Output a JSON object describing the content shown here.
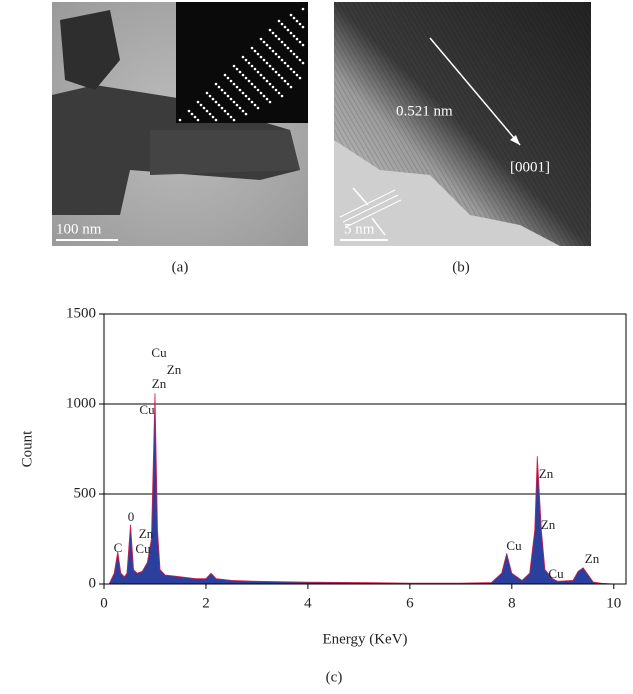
{
  "panels": {
    "a": {
      "label": "(a)",
      "scale_bar": "100 nm"
    },
    "b": {
      "label": "(b)",
      "scale_bar": "5 nm",
      "spacing": "0.521 nm",
      "direction": "[0001]"
    }
  },
  "chart_data": {
    "type": "area",
    "caption": "(c)",
    "xlabel": "Energy (KeV)",
    "ylabel": "Count",
    "color": "#2b3f9f",
    "edge_color": "#d0204a",
    "x": [
      0.1,
      0.2,
      0.27,
      0.33,
      0.4,
      0.45,
      0.52,
      0.58,
      0.65,
      0.75,
      0.85,
      0.93,
      1.0,
      1.05,
      1.1,
      1.2,
      1.5,
      1.8,
      2.0,
      2.1,
      2.2,
      2.5,
      3,
      4,
      5,
      6,
      7,
      7.6,
      7.8,
      7.9,
      8.0,
      8.2,
      8.35,
      8.45,
      8.5,
      8.58,
      8.65,
      8.8,
      8.9,
      9.2,
      9.3,
      9.4,
      9.5,
      9.6,
      9.8,
      10
    ],
    "values": [
      0,
      60,
      180,
      60,
      40,
      60,
      330,
      80,
      60,
      70,
      120,
      250,
      1060,
      300,
      80,
      50,
      40,
      30,
      30,
      60,
      30,
      20,
      15,
      10,
      8,
      5,
      5,
      8,
      60,
      170,
      60,
      20,
      60,
      300,
      710,
      300,
      80,
      30,
      15,
      20,
      70,
      90,
      50,
      10,
      3,
      0
    ],
    "annotations": [
      "C",
      "0",
      "Zn",
      "Cu",
      "Cu",
      "Zn",
      "Zn",
      "Cu",
      "Cu",
      "Zn",
      "Zn",
      "Cu",
      "Zn"
    ],
    "xlim": [
      0,
      10.24
    ],
    "ylim": [
      0,
      1500
    ],
    "xticks": [
      0,
      2,
      4,
      6,
      8,
      10
    ],
    "yticks": [
      0,
      500,
      1000,
      1500
    ],
    "grid": true
  }
}
